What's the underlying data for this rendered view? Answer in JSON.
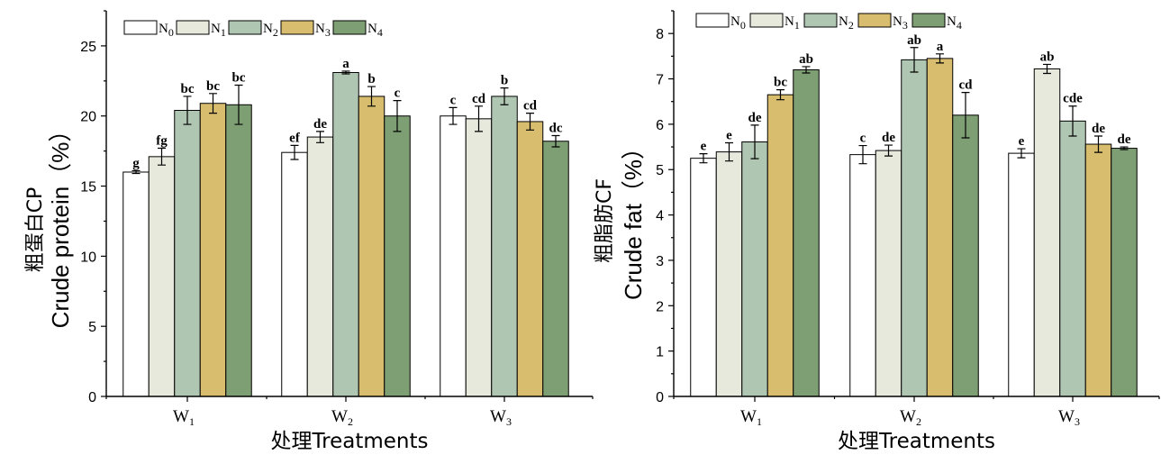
{
  "colors": {
    "N0": "#ffffff",
    "N1": "#e8e9dd",
    "N2": "#afc6b2",
    "N3": "#d8bd6e",
    "N4": "#7e9e73"
  },
  "chart_data": [
    {
      "type": "bar",
      "ylabel_cn": "粗蛋白CP",
      "ylabel_en": "Crude protein（%）",
      "xlabel": "处理Treatments",
      "ylim": [
        0,
        27.5
      ],
      "yticks": [
        0,
        5,
        10,
        15,
        20,
        25
      ],
      "legend_position": "top-left",
      "categories": [
        {
          "main": "W",
          "sub": "1"
        },
        {
          "main": "W",
          "sub": "2"
        },
        {
          "main": "W",
          "sub": "3"
        }
      ],
      "series": [
        {
          "key": "N0",
          "name_main": "N",
          "name_sub": "0",
          "values": [
            16.0,
            17.4,
            20.0
          ],
          "errors": [
            0.1,
            0.5,
            0.6
          ],
          "letters": [
            "g",
            "ef",
            "c"
          ]
        },
        {
          "key": "N1",
          "name_main": "N",
          "name_sub": "1",
          "values": [
            17.1,
            18.5,
            19.8
          ],
          "errors": [
            0.6,
            0.4,
            0.9
          ],
          "letters": [
            "fg",
            "de",
            "cd"
          ]
        },
        {
          "key": "N2",
          "name_main": "N",
          "name_sub": "2",
          "values": [
            20.4,
            23.1,
            21.4
          ],
          "errors": [
            1.0,
            0.1,
            0.6
          ],
          "letters": [
            "bc",
            "a",
            "b"
          ]
        },
        {
          "key": "N3",
          "name_main": "N",
          "name_sub": "3",
          "values": [
            20.9,
            21.4,
            19.6
          ],
          "errors": [
            0.7,
            0.7,
            0.6
          ],
          "letters": [
            "bc",
            "b",
            "cd"
          ]
        },
        {
          "key": "N4",
          "name_main": "N",
          "name_sub": "4",
          "values": [
            20.8,
            20.0,
            18.2
          ],
          "errors": [
            1.4,
            1.1,
            0.4
          ],
          "letters": [
            "bc",
            "c",
            "dc"
          ]
        }
      ]
    },
    {
      "type": "bar",
      "ylabel_cn": "粗脂肪CF",
      "ylabel_en": "Crude fat（%）",
      "xlabel": "处理Treatments",
      "ylim": [
        0,
        8.5
      ],
      "yticks": [
        0,
        1,
        2,
        3,
        4,
        5,
        6,
        7,
        8
      ],
      "legend_position": "top-left",
      "categories": [
        {
          "main": "W",
          "sub": "1"
        },
        {
          "main": "W",
          "sub": "2"
        },
        {
          "main": "W",
          "sub": "3"
        }
      ],
      "series": [
        {
          "key": "N0",
          "name_main": "N",
          "name_sub": "0",
          "values": [
            5.25,
            5.33,
            5.36
          ],
          "errors": [
            0.1,
            0.2,
            0.1
          ],
          "letters": [
            "e",
            "c",
            "e"
          ]
        },
        {
          "key": "N1",
          "name_main": "N",
          "name_sub": "1",
          "values": [
            5.39,
            5.42,
            7.22
          ],
          "errors": [
            0.2,
            0.12,
            0.1
          ],
          "letters": [
            "e",
            "de",
            "ab"
          ]
        },
        {
          "key": "N2",
          "name_main": "N",
          "name_sub": "2",
          "values": [
            5.61,
            7.42,
            6.07
          ],
          "errors": [
            0.37,
            0.27,
            0.33
          ],
          "letters": [
            "de",
            "ab",
            "cde"
          ]
        },
        {
          "key": "N3",
          "name_main": "N",
          "name_sub": "3",
          "values": [
            6.65,
            7.45,
            5.56
          ],
          "errors": [
            0.11,
            0.1,
            0.18
          ],
          "letters": [
            "bc",
            "a",
            "de"
          ]
        },
        {
          "key": "N4",
          "name_main": "N",
          "name_sub": "4",
          "values": [
            7.2,
            6.2,
            5.47
          ],
          "errors": [
            0.07,
            0.5,
            0.03
          ],
          "letters": [
            "ab",
            "cd",
            "de"
          ]
        }
      ]
    }
  ]
}
